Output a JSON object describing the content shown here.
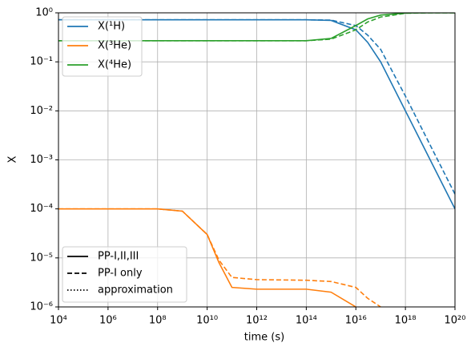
{
  "chart_data": {
    "type": "line",
    "xlabel": "time (s)",
    "ylabel": "X",
    "xscale": "log",
    "yscale": "log",
    "grid": true,
    "xlim": [
      10000.0,
      1e+20
    ],
    "ylim": [
      1e-06,
      1
    ],
    "xticks": [
      {
        "value": 10000.0,
        "label": "10⁴"
      },
      {
        "value": 1000000.0,
        "label": "10⁶"
      },
      {
        "value": 100000000.0,
        "label": "10⁸"
      },
      {
        "value": 10000000000.0,
        "label": "10¹⁰"
      },
      {
        "value": 1000000000000.0,
        "label": "10¹²"
      },
      {
        "value": 100000000000000.0,
        "label": "10¹⁴"
      },
      {
        "value": 1e+16,
        "label": "10¹⁶"
      },
      {
        "value": 1e+18,
        "label": "10¹⁸"
      },
      {
        "value": 1e+20,
        "label": "10²⁰"
      }
    ],
    "yticks": [
      {
        "value": 1e-06,
        "label": "10⁻⁶"
      },
      {
        "value": 1e-05,
        "label": "10⁻⁵"
      },
      {
        "value": 0.0001,
        "label": "10⁻⁴"
      },
      {
        "value": 0.001,
        "label": "10⁻³"
      },
      {
        "value": 0.01,
        "label": "10⁻²"
      },
      {
        "value": 0.1,
        "label": "10⁻¹"
      },
      {
        "value": 1,
        "label": "10⁰"
      }
    ],
    "x": [
      10000.0,
      1000000.0,
      100000000.0,
      1000000000.0,
      10000000000.0,
      30000000000.0,
      100000000000.0,
      1000000000000.0,
      100000000000000.0,
      1000000000000000.0,
      1e+16,
      3e+16,
      1e+17,
      1e+18,
      1e+19,
      1e+20
    ],
    "line_styles": [
      {
        "name": "PP-I,II,III",
        "dash": "solid"
      },
      {
        "name": "PP-I only",
        "dash": "dashed"
      },
      {
        "name": "approximation",
        "dash": "dotted"
      }
    ],
    "series": [
      {
        "name": "X(¹H)",
        "color": "#1f77b4",
        "lines": [
          [
            0.72,
            0.72,
            0.72,
            0.72,
            0.72,
            0.72,
            0.72,
            0.72,
            0.72,
            0.7,
            0.45,
            0.25,
            0.1,
            0.01,
            0.001,
            0.0001
          ],
          [
            0.72,
            0.72,
            0.72,
            0.72,
            0.72,
            0.72,
            0.72,
            0.72,
            0.72,
            0.71,
            0.55,
            0.35,
            0.18,
            0.02,
            0.002,
            0.0002
          ]
        ]
      },
      {
        "name": "X(³He)",
        "color": "#ff7f0e",
        "lines": [
          [
            0.0001,
            0.0001,
            0.0001,
            9e-05,
            3e-05,
            8e-06,
            2.5e-06,
            2.3e-06,
            2.3e-06,
            2e-06,
            1e-06,
            null,
            null,
            null,
            null,
            null
          ],
          [
            0.0001,
            0.0001,
            0.0001,
            9e-05,
            3e-05,
            9e-06,
            4e-06,
            3.6e-06,
            3.5e-06,
            3.3e-06,
            2.5e-06,
            1.5e-06,
            1e-06,
            null,
            null,
            null
          ]
        ]
      },
      {
        "name": "X(⁴He)",
        "color": "#2ca02c",
        "lines": [
          [
            0.27,
            0.27,
            0.27,
            0.27,
            0.27,
            0.27,
            0.27,
            0.27,
            0.27,
            0.3,
            0.55,
            0.75,
            0.9,
            0.99,
            1,
            1
          ],
          [
            0.27,
            0.27,
            0.27,
            0.27,
            0.27,
            0.27,
            0.27,
            0.27,
            0.27,
            0.29,
            0.45,
            0.65,
            0.82,
            0.98,
            1,
            1
          ]
        ]
      }
    ]
  }
}
